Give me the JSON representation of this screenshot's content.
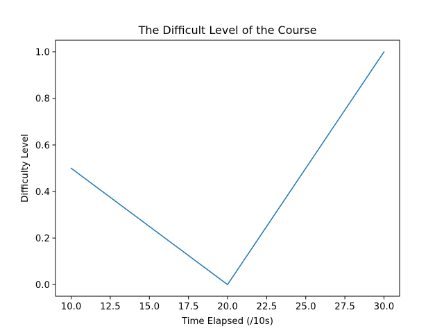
{
  "chart_data": {
    "type": "line",
    "title": "The Difficult Level of the Course",
    "xlabel": "Time Elapsed (/10s)",
    "ylabel": "Difficulty Level",
    "xlim": [
      9.0,
      31.0
    ],
    "ylim": [
      -0.05,
      1.05
    ],
    "xticks": [
      "10.0",
      "12.5",
      "15.0",
      "17.5",
      "20.0",
      "22.5",
      "25.0",
      "27.5",
      "30.0"
    ],
    "yticks": [
      "0.0",
      "0.2",
      "0.4",
      "0.6",
      "0.8",
      "1.0"
    ],
    "grid": false,
    "series": [
      {
        "color": "#1f77b4",
        "points": [
          {
            "x": 10,
            "y": 0.5
          },
          {
            "x": 20,
            "y": 0.0
          },
          {
            "x": 30,
            "y": 1.0
          }
        ]
      }
    ]
  }
}
